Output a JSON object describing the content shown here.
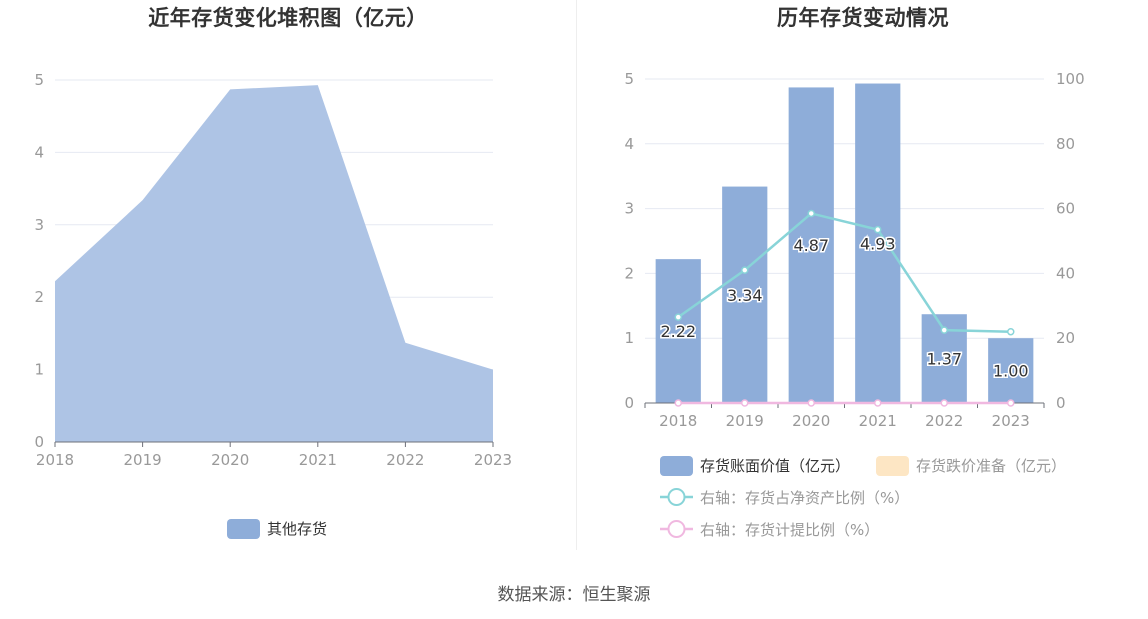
{
  "left_chart": {
    "title": "近年存货变化堆积图（亿元）",
    "legend": [
      "其他存货"
    ]
  },
  "right_chart": {
    "title": "历年存货变动情况",
    "legend": {
      "bar_main": "存货账面价值（亿元）",
      "bar_secondary": "存货跌价准备（亿元）",
      "line_ratio": "右轴：存货占净资产比例（%）",
      "line_provision": "右轴：存货计提比例（%）"
    }
  },
  "source": "数据来源：恒生聚源",
  "colors": {
    "area": "#aec4e5",
    "bar": "#8eadd9",
    "bar_secondary": "#fde6c4",
    "line_ratio": "#88d4d8",
    "line_provision": "#f0b8e0",
    "grid": "#e6e9f2",
    "axis_text": "#999999"
  },
  "chart_data": [
    {
      "type": "area",
      "title": "近年存货变化堆积图（亿元）",
      "x": [
        "2018",
        "2019",
        "2020",
        "2021",
        "2022",
        "2023"
      ],
      "ylim": [
        0,
        5
      ],
      "y_ticks": [
        0,
        1,
        2,
        3,
        4,
        5
      ],
      "grid": true,
      "legend_position": "bottom",
      "series": [
        {
          "name": "其他存货",
          "values": [
            2.22,
            3.34,
            4.87,
            4.93,
            1.37,
            1.0
          ]
        }
      ]
    },
    {
      "type": "bar",
      "title": "历年存货变动情况",
      "categories": [
        "2018",
        "2019",
        "2020",
        "2021",
        "2022",
        "2023"
      ],
      "ylim": [
        0,
        5
      ],
      "y_ticks": [
        0,
        1,
        2,
        3,
        4,
        5
      ],
      "y2lim": [
        0,
        100
      ],
      "y2_ticks": [
        0,
        20,
        40,
        60,
        80,
        100
      ],
      "grid": true,
      "legend_position": "bottom",
      "series": [
        {
          "name": "存货账面价值（亿元）",
          "type": "bar",
          "axis": "left",
          "values": [
            2.22,
            3.34,
            4.87,
            4.93,
            1.37,
            1.0
          ],
          "labels": [
            "2.22",
            "3.34",
            "4.87",
            "4.93",
            "1.37",
            "1.00"
          ]
        },
        {
          "name": "存货跌价准备（亿元）",
          "type": "bar",
          "axis": "left",
          "values": [
            0,
            0,
            0,
            0,
            0,
            0
          ]
        },
        {
          "name": "右轴：存货占净资产比例（%）",
          "type": "line",
          "axis": "right",
          "values": [
            26.5,
            41,
            58.5,
            53.5,
            22.5,
            22
          ]
        },
        {
          "name": "右轴：存货计提比例（%）",
          "type": "line",
          "axis": "right",
          "values": [
            0,
            0,
            0,
            0,
            0,
            0
          ]
        }
      ]
    }
  ]
}
